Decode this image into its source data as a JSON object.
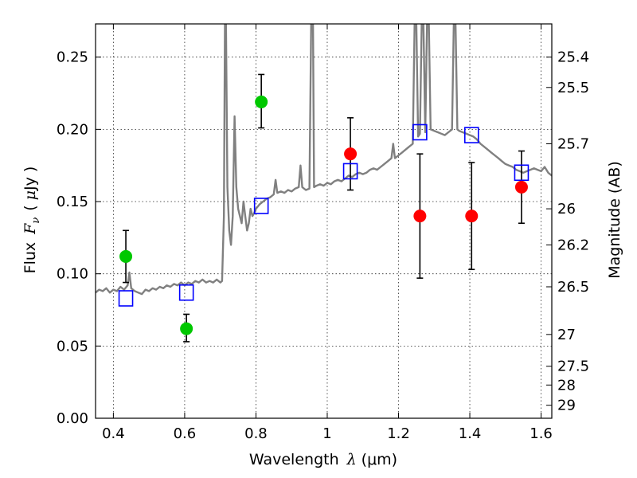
{
  "chart_data": {
    "type": "scatter",
    "title": "",
    "xlabel_prefix": "Wavelength",
    "xlabel_symbol": "λ",
    "xlabel_unit": "(μm)",
    "ylabel_prefix": "Flux",
    "ylabel_symbol": "F",
    "ylabel_subscript": "ν",
    "ylabel_open": "(",
    "ylabel_unit_mu": "μ",
    "ylabel_unit_rest": "Jy",
    "ylabel_close": ")",
    "y2label": "Magnitude (AB)",
    "xlim": [
      0.35,
      1.63
    ],
    "ylim": [
      0.0,
      0.273
    ],
    "grid": true,
    "x_ticks": [
      {
        "v": 0.4,
        "label": "0.4"
      },
      {
        "v": 0.6,
        "label": "0.6"
      },
      {
        "v": 0.8,
        "label": "0.8"
      },
      {
        "v": 1.0,
        "label": "1"
      },
      {
        "v": 1.2,
        "label": "1.2"
      },
      {
        "v": 1.4,
        "label": "1.4"
      },
      {
        "v": 1.6,
        "label": "1.6"
      }
    ],
    "y_ticks": [
      {
        "v": 0.0,
        "label": "0.00"
      },
      {
        "v": 0.05,
        "label": "0.05"
      },
      {
        "v": 0.1,
        "label": "0.10"
      },
      {
        "v": 0.15,
        "label": "0.15"
      },
      {
        "v": 0.2,
        "label": "0.20"
      },
      {
        "v": 0.25,
        "label": "0.25"
      }
    ],
    "y2_ticks": [
      {
        "flux": 0.25,
        "label": "25.4"
      },
      {
        "flux": 0.229,
        "label": "25.5"
      },
      {
        "flux": 0.19,
        "label": "25.7"
      },
      {
        "flux": 0.145,
        "label": "26"
      },
      {
        "flux": 0.12,
        "label": "26.2"
      },
      {
        "flux": 0.091,
        "label": "26.5"
      },
      {
        "flux": 0.058,
        "label": "27"
      },
      {
        "flux": 0.036,
        "label": "27.5"
      },
      {
        "flux": 0.023,
        "label": "28"
      },
      {
        "flux": 0.009,
        "label": "29"
      }
    ],
    "series": [
      {
        "kind": "line",
        "color": "#808080",
        "points": [
          [
            0.35,
            0.087
          ],
          [
            0.36,
            0.089
          ],
          [
            0.37,
            0.088
          ],
          [
            0.38,
            0.09
          ],
          [
            0.39,
            0.087
          ],
          [
            0.4,
            0.089
          ],
          [
            0.41,
            0.088
          ],
          [
            0.42,
            0.091
          ],
          [
            0.43,
            0.089
          ],
          [
            0.44,
            0.092
          ],
          [
            0.445,
            0.101
          ],
          [
            0.45,
            0.09
          ],
          [
            0.46,
            0.088
          ],
          [
            0.47,
            0.087
          ],
          [
            0.48,
            0.086
          ],
          [
            0.49,
            0.089
          ],
          [
            0.5,
            0.088
          ],
          [
            0.51,
            0.09
          ],
          [
            0.52,
            0.089
          ],
          [
            0.53,
            0.091
          ],
          [
            0.54,
            0.09
          ],
          [
            0.55,
            0.092
          ],
          [
            0.56,
            0.091
          ],
          [
            0.57,
            0.093
          ],
          [
            0.58,
            0.092
          ],
          [
            0.59,
            0.094
          ],
          [
            0.6,
            0.092
          ],
          [
            0.61,
            0.094
          ],
          [
            0.62,
            0.093
          ],
          [
            0.63,
            0.095
          ],
          [
            0.64,
            0.094
          ],
          [
            0.65,
            0.096
          ],
          [
            0.66,
            0.094
          ],
          [
            0.67,
            0.095
          ],
          [
            0.68,
            0.094
          ],
          [
            0.69,
            0.096
          ],
          [
            0.7,
            0.094
          ],
          [
            0.705,
            0.095
          ],
          [
            0.71,
            0.14
          ],
          [
            0.713,
            0.273
          ],
          [
            0.716,
            0.273
          ],
          [
            0.72,
            0.16
          ],
          [
            0.725,
            0.13
          ],
          [
            0.73,
            0.12
          ],
          [
            0.735,
            0.14
          ],
          [
            0.74,
            0.209
          ],
          [
            0.745,
            0.16
          ],
          [
            0.75,
            0.145
          ],
          [
            0.755,
            0.14
          ],
          [
            0.76,
            0.135
          ],
          [
            0.765,
            0.15
          ],
          [
            0.77,
            0.14
          ],
          [
            0.775,
            0.13
          ],
          [
            0.78,
            0.135
          ],
          [
            0.785,
            0.145
          ],
          [
            0.79,
            0.14
          ],
          [
            0.795,
            0.142
          ],
          [
            0.8,
            0.145
          ],
          [
            0.81,
            0.148
          ],
          [
            0.82,
            0.15
          ],
          [
            0.83,
            0.152
          ],
          [
            0.84,
            0.153
          ],
          [
            0.85,
            0.155
          ],
          [
            0.855,
            0.165
          ],
          [
            0.86,
            0.156
          ],
          [
            0.87,
            0.157
          ],
          [
            0.88,
            0.156
          ],
          [
            0.89,
            0.158
          ],
          [
            0.9,
            0.157
          ],
          [
            0.91,
            0.159
          ],
          [
            0.92,
            0.16
          ],
          [
            0.925,
            0.175
          ],
          [
            0.93,
            0.16
          ],
          [
            0.94,
            0.158
          ],
          [
            0.95,
            0.159
          ],
          [
            0.955,
            0.273
          ],
          [
            0.96,
            0.273
          ],
          [
            0.963,
            0.16
          ],
          [
            0.97,
            0.161
          ],
          [
            0.98,
            0.162
          ],
          [
            0.99,
            0.161
          ],
          [
            1.0,
            0.163
          ],
          [
            1.01,
            0.162
          ],
          [
            1.02,
            0.164
          ],
          [
            1.03,
            0.165
          ],
          [
            1.04,
            0.164
          ],
          [
            1.05,
            0.166
          ],
          [
            1.06,
            0.168
          ],
          [
            1.07,
            0.167
          ],
          [
            1.08,
            0.169
          ],
          [
            1.09,
            0.17
          ],
          [
            1.1,
            0.169
          ],
          [
            1.11,
            0.17
          ],
          [
            1.12,
            0.172
          ],
          [
            1.13,
            0.173
          ],
          [
            1.14,
            0.172
          ],
          [
            1.15,
            0.174
          ],
          [
            1.16,
            0.176
          ],
          [
            1.17,
            0.178
          ],
          [
            1.18,
            0.18
          ],
          [
            1.185,
            0.19
          ],
          [
            1.19,
            0.18
          ],
          [
            1.2,
            0.182
          ],
          [
            1.21,
            0.184
          ],
          [
            1.22,
            0.186
          ],
          [
            1.23,
            0.188
          ],
          [
            1.24,
            0.19
          ],
          [
            1.245,
            0.273
          ],
          [
            1.25,
            0.273
          ],
          [
            1.255,
            0.195
          ],
          [
            1.26,
            0.197
          ],
          [
            1.265,
            0.273
          ],
          [
            1.27,
            0.273
          ],
          [
            1.275,
            0.198
          ],
          [
            1.28,
            0.273
          ],
          [
            1.285,
            0.273
          ],
          [
            1.29,
            0.2
          ],
          [
            1.3,
            0.199
          ],
          [
            1.31,
            0.198
          ],
          [
            1.32,
            0.197
          ],
          [
            1.33,
            0.196
          ],
          [
            1.34,
            0.198
          ],
          [
            1.35,
            0.2
          ],
          [
            1.355,
            0.273
          ],
          [
            1.36,
            0.273
          ],
          [
            1.365,
            0.2
          ],
          [
            1.37,
            0.199
          ],
          [
            1.38,
            0.198
          ],
          [
            1.39,
            0.197
          ],
          [
            1.4,
            0.196
          ],
          [
            1.41,
            0.195
          ],
          [
            1.42,
            0.193
          ],
          [
            1.43,
            0.19
          ],
          [
            1.44,
            0.188
          ],
          [
            1.45,
            0.186
          ],
          [
            1.46,
            0.184
          ],
          [
            1.47,
            0.182
          ],
          [
            1.48,
            0.18
          ],
          [
            1.49,
            0.178
          ],
          [
            1.5,
            0.176
          ],
          [
            1.51,
            0.175
          ],
          [
            1.52,
            0.174
          ],
          [
            1.53,
            0.172
          ],
          [
            1.54,
            0.171
          ],
          [
            1.55,
            0.17
          ],
          [
            1.56,
            0.171
          ],
          [
            1.57,
            0.172
          ],
          [
            1.58,
            0.173
          ],
          [
            1.59,
            0.172
          ],
          [
            1.6,
            0.171
          ],
          [
            1.61,
            0.174
          ],
          [
            1.62,
            0.17
          ],
          [
            1.63,
            0.168
          ]
        ]
      },
      {
        "kind": "points",
        "marker": "circle",
        "color": "#00c800",
        "points": [
          {
            "x": 0.435,
            "y": 0.112,
            "err_low": 0.094,
            "err_high": 0.13
          },
          {
            "x": 0.605,
            "y": 0.062,
            "err_low": 0.053,
            "err_high": 0.072
          },
          {
            "x": 0.815,
            "y": 0.219,
            "err_low": 0.201,
            "err_high": 0.238
          }
        ]
      },
      {
        "kind": "points",
        "marker": "circle",
        "color": "#ff0000",
        "points": [
          {
            "x": 1.065,
            "y": 0.183,
            "err_low": 0.158,
            "err_high": 0.208
          },
          {
            "x": 1.26,
            "y": 0.14,
            "err_low": 0.097,
            "err_high": 0.183
          },
          {
            "x": 1.405,
            "y": 0.14,
            "err_low": 0.103,
            "err_high": 0.177
          },
          {
            "x": 1.545,
            "y": 0.16,
            "err_low": 0.135,
            "err_high": 0.185
          }
        ]
      },
      {
        "kind": "points",
        "marker": "square-open",
        "color": "#0000ff",
        "points": [
          {
            "x": 0.435,
            "y": 0.083
          },
          {
            "x": 0.605,
            "y": 0.087
          },
          {
            "x": 0.815,
            "y": 0.147
          },
          {
            "x": 1.065,
            "y": 0.171
          },
          {
            "x": 1.26,
            "y": 0.198
          },
          {
            "x": 1.405,
            "y": 0.196
          },
          {
            "x": 1.545,
            "y": 0.17
          }
        ]
      }
    ]
  }
}
